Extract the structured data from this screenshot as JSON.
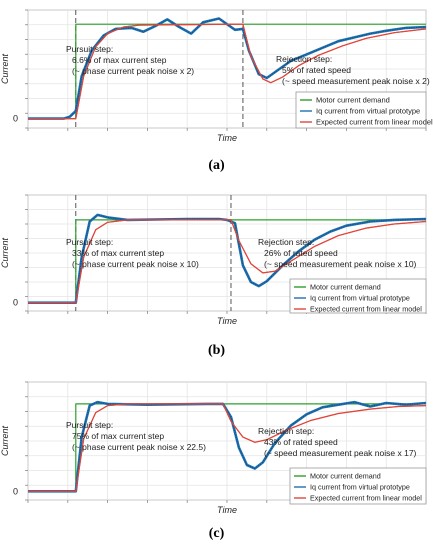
{
  "chart_data": [
    {
      "type": "line",
      "panel": "a",
      "xlabel": "Time",
      "ylabel": "Current",
      "y_ticks": [
        "0"
      ],
      "ylim": [
        -0.1,
        1.15
      ],
      "xlim": [
        0,
        10
      ],
      "grid": true,
      "legend_position": "bottom-right",
      "series": [
        {
          "name": "Motor current demand",
          "color": "#2ca02c",
          "points": [
            [
              0,
              0
            ],
            [
              1.2,
              0
            ],
            [
              1.2,
              1
            ],
            [
              10,
              1
            ]
          ]
        },
        {
          "name": "Iq current from virtual prototype",
          "color": "#1f6fb2",
          "points": [
            [
              0,
              0
            ],
            [
              0.9,
              0
            ],
            [
              1.05,
              0.02
            ],
            [
              1.2,
              0.08
            ],
            [
              1.35,
              0.45
            ],
            [
              1.6,
              0.72
            ],
            [
              1.9,
              0.88
            ],
            [
              2.2,
              0.95
            ],
            [
              2.6,
              0.96
            ],
            [
              2.9,
              0.92
            ],
            [
              3.2,
              0.98
            ],
            [
              3.5,
              1.05
            ],
            [
              3.8,
              0.97
            ],
            [
              4.1,
              0.9
            ],
            [
              4.4,
              1.02
            ],
            [
              4.8,
              1.06
            ],
            [
              5.2,
              0.94
            ],
            [
              5.4,
              0.95
            ],
            [
              5.55,
              0.72
            ],
            [
              5.8,
              0.47
            ],
            [
              6.0,
              0.43
            ],
            [
              6.3,
              0.52
            ],
            [
              6.6,
              0.61
            ],
            [
              7.0,
              0.68
            ],
            [
              7.4,
              0.75
            ],
            [
              7.8,
              0.82
            ],
            [
              8.2,
              0.86
            ],
            [
              8.6,
              0.9
            ],
            [
              9.0,
              0.93
            ],
            [
              9.5,
              0.96
            ],
            [
              10,
              0.97
            ]
          ]
        },
        {
          "name": "Expected current from linear model",
          "color": "#e0453a",
          "points": [
            [
              0,
              0
            ],
            [
              1.2,
              0
            ],
            [
              1.4,
              0.45
            ],
            [
              1.7,
              0.76
            ],
            [
              2.0,
              0.9
            ],
            [
              2.4,
              0.97
            ],
            [
              2.8,
              0.99
            ],
            [
              5.3,
              1.0
            ],
            [
              5.4,
              1.0
            ],
            [
              5.6,
              0.66
            ],
            [
              5.9,
              0.42
            ],
            [
              6.1,
              0.38
            ],
            [
              6.4,
              0.44
            ],
            [
              6.8,
              0.56
            ],
            [
              7.3,
              0.67
            ],
            [
              7.9,
              0.77
            ],
            [
              8.5,
              0.85
            ],
            [
              9.2,
              0.91
            ],
            [
              10,
              0.95
            ]
          ]
        }
      ],
      "annotations": [
        {
          "title": "Pursuit step:",
          "line1": "6.6% of max current step",
          "line2": "(~ phase current peak noise x 2)"
        },
        {
          "title": "Rejection step:",
          "line1": "5% of rated speed",
          "line2": "(~ speed measurement peak noise x 2)"
        }
      ],
      "step_markers": [
        1.2,
        5.4
      ],
      "caption": "(a)"
    },
    {
      "type": "line",
      "panel": "b",
      "xlabel": "Time",
      "ylabel": "Current",
      "y_ticks": [
        "0"
      ],
      "ylim": [
        -0.1,
        1.3
      ],
      "xlim": [
        0,
        10
      ],
      "grid": true,
      "legend_position": "bottom-right",
      "series": [
        {
          "name": "Motor current demand",
          "color": "#2ca02c",
          "points": [
            [
              0,
              0
            ],
            [
              1.2,
              0
            ],
            [
              1.2,
              1
            ],
            [
              10,
              1
            ]
          ]
        },
        {
          "name": "Iq current from virtual prototype",
          "color": "#1f6fb2",
          "points": [
            [
              0,
              0
            ],
            [
              1.2,
              0
            ],
            [
              1.35,
              0.55
            ],
            [
              1.55,
              0.98
            ],
            [
              1.75,
              1.06
            ],
            [
              2.0,
              1.03
            ],
            [
              2.5,
              1.0
            ],
            [
              4.0,
              1.01
            ],
            [
              4.8,
              1.01
            ],
            [
              5.0,
              1.0
            ],
            [
              5.2,
              0.96
            ],
            [
              5.4,
              0.45
            ],
            [
              5.6,
              0.25
            ],
            [
              5.8,
              0.2
            ],
            [
              6.0,
              0.26
            ],
            [
              6.4,
              0.45
            ],
            [
              6.8,
              0.62
            ],
            [
              7.2,
              0.76
            ],
            [
              7.6,
              0.86
            ],
            [
              8.0,
              0.93
            ],
            [
              8.6,
              0.98
            ],
            [
              9.2,
              1.0
            ],
            [
              10,
              1.01
            ]
          ]
        },
        {
          "name": "Expected current from linear model",
          "color": "#e0453a",
          "points": [
            [
              0,
              0
            ],
            [
              1.2,
              0
            ],
            [
              1.4,
              0.55
            ],
            [
              1.7,
              0.88
            ],
            [
              2.0,
              0.97
            ],
            [
              2.5,
              1.0
            ],
            [
              5.1,
              1.0
            ],
            [
              5.3,
              0.75
            ],
            [
              5.6,
              0.47
            ],
            [
              5.9,
              0.36
            ],
            [
              6.2,
              0.38
            ],
            [
              6.6,
              0.5
            ],
            [
              7.2,
              0.68
            ],
            [
              7.8,
              0.81
            ],
            [
              8.5,
              0.9
            ],
            [
              9.2,
              0.95
            ],
            [
              10,
              0.98
            ]
          ]
        }
      ],
      "annotations": [
        {
          "title": "Pursuit step:",
          "line1": "33% of max current step",
          "line2": "(~ phase current peak noise x 10)"
        },
        {
          "title": "Rejection step:",
          "line1": "26% of rated speed",
          "line2": "(~ speed measurement peak noise x 10)"
        }
      ],
      "step_markers": [
        1.2,
        5.1
      ],
      "caption": "(b)"
    },
    {
      "type": "line",
      "panel": "c",
      "xlabel": "Time",
      "ylabel": "Current",
      "y_ticks": [
        "0"
      ],
      "ylim": [
        -0.1,
        1.25
      ],
      "xlim": [
        0,
        10
      ],
      "grid": true,
      "legend_position": "bottom-right",
      "series": [
        {
          "name": "Motor current demand",
          "color": "#2ca02c",
          "points": [
            [
              0,
              0
            ],
            [
              1.2,
              0
            ],
            [
              1.2,
              1
            ],
            [
              10,
              1
            ]
          ]
        },
        {
          "name": "Iq current from virtual prototype",
          "color": "#1f6fb2",
          "points": [
            [
              0,
              0
            ],
            [
              1.2,
              0
            ],
            [
              1.35,
              0.62
            ],
            [
              1.55,
              0.98
            ],
            [
              1.75,
              1.02
            ],
            [
              2.0,
              1.0
            ],
            [
              3.0,
              0.99
            ],
            [
              4.5,
              1.0
            ],
            [
              4.9,
              1.0
            ],
            [
              5.1,
              0.85
            ],
            [
              5.3,
              0.5
            ],
            [
              5.5,
              0.3
            ],
            [
              5.7,
              0.26
            ],
            [
              5.9,
              0.33
            ],
            [
              6.2,
              0.55
            ],
            [
              6.6,
              0.75
            ],
            [
              7.0,
              0.88
            ],
            [
              7.4,
              0.96
            ],
            [
              7.8,
              0.99
            ],
            [
              8.2,
              1.02
            ],
            [
              8.6,
              0.97
            ],
            [
              9.0,
              1.01
            ],
            [
              9.5,
              0.99
            ],
            [
              10,
              1.01
            ]
          ]
        },
        {
          "name": "Expected current from linear model",
          "color": "#e0453a",
          "points": [
            [
              0,
              0
            ],
            [
              1.2,
              0
            ],
            [
              1.4,
              0.6
            ],
            [
              1.7,
              0.9
            ],
            [
              2.0,
              0.98
            ],
            [
              2.5,
              1.0
            ],
            [
              4.9,
              1.0
            ],
            [
              5.1,
              0.8
            ],
            [
              5.4,
              0.62
            ],
            [
              5.7,
              0.56
            ],
            [
              6.0,
              0.59
            ],
            [
              6.5,
              0.7
            ],
            [
              7.1,
              0.81
            ],
            [
              7.8,
              0.89
            ],
            [
              8.6,
              0.94
            ],
            [
              9.3,
              0.97
            ],
            [
              10,
              0.98
            ]
          ]
        }
      ],
      "annotations": [
        {
          "title": "Pursuit step:",
          "line1": "75% of max current step",
          "line2": "(~ phase current peak noise x 22.5)"
        },
        {
          "title": "Rejection step:",
          "line1": "43% of rated speed",
          "line2": "(~ speed measurement peak noise x 17)"
        }
      ],
      "step_markers": [],
      "caption": "(c)"
    }
  ]
}
